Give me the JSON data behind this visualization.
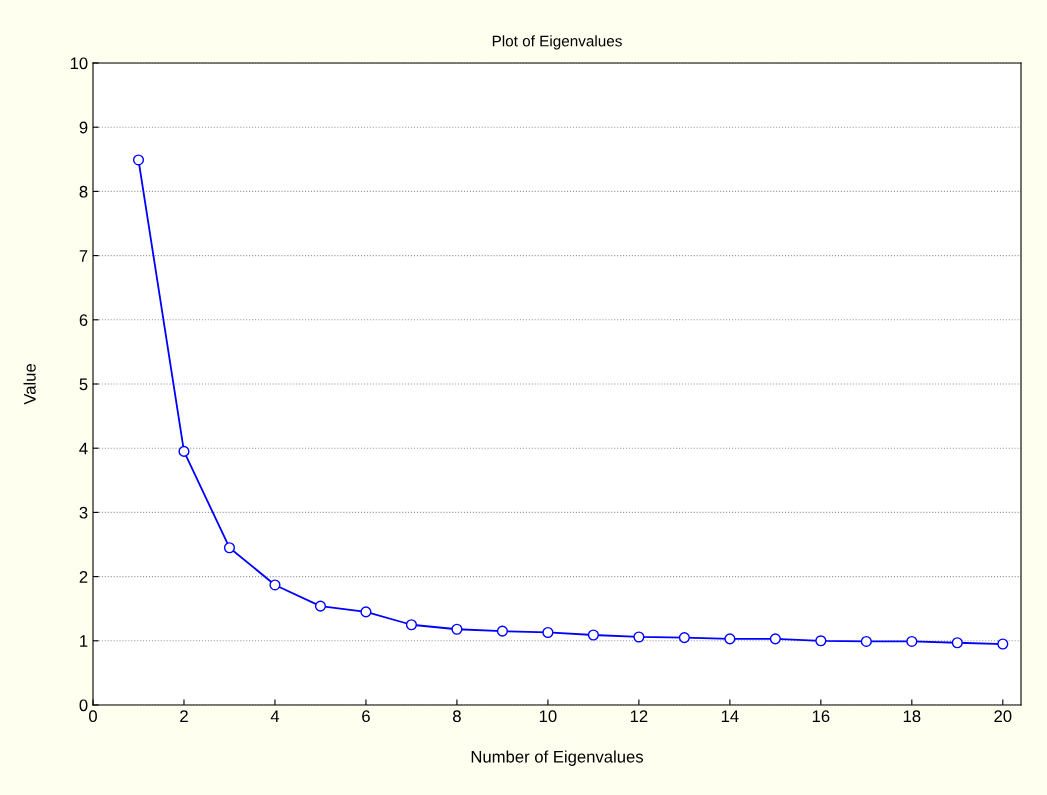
{
  "chart_data": {
    "type": "line",
    "title": "Plot of Eigenvalues",
    "xlabel": "Number of Eigenvalues",
    "ylabel": "Value",
    "x": [
      1,
      2,
      3,
      4,
      5,
      6,
      7,
      8,
      9,
      10,
      11,
      12,
      13,
      14,
      15,
      16,
      17,
      18,
      19,
      20
    ],
    "series": [
      {
        "color": "#0000ff",
        "values": [
          8.49,
          3.95,
          2.45,
          1.87,
          1.54,
          1.45,
          1.25,
          1.18,
          1.15,
          1.13,
          1.09,
          1.06,
          1.05,
          1.03,
          1.03,
          1.0,
          0.99,
          0.99,
          0.97,
          0.95
        ]
      }
    ],
    "xlim": [
      0,
      20.4
    ],
    "xticks": [
      0,
      2,
      4,
      6,
      8,
      10,
      12,
      14,
      16,
      18,
      20
    ],
    "ylim": [
      0,
      10
    ],
    "yticks": [
      0,
      1,
      2,
      3,
      4,
      5,
      6,
      7,
      8,
      9,
      10
    ],
    "grid": "y",
    "marker": "circle",
    "line_style": "solid"
  }
}
